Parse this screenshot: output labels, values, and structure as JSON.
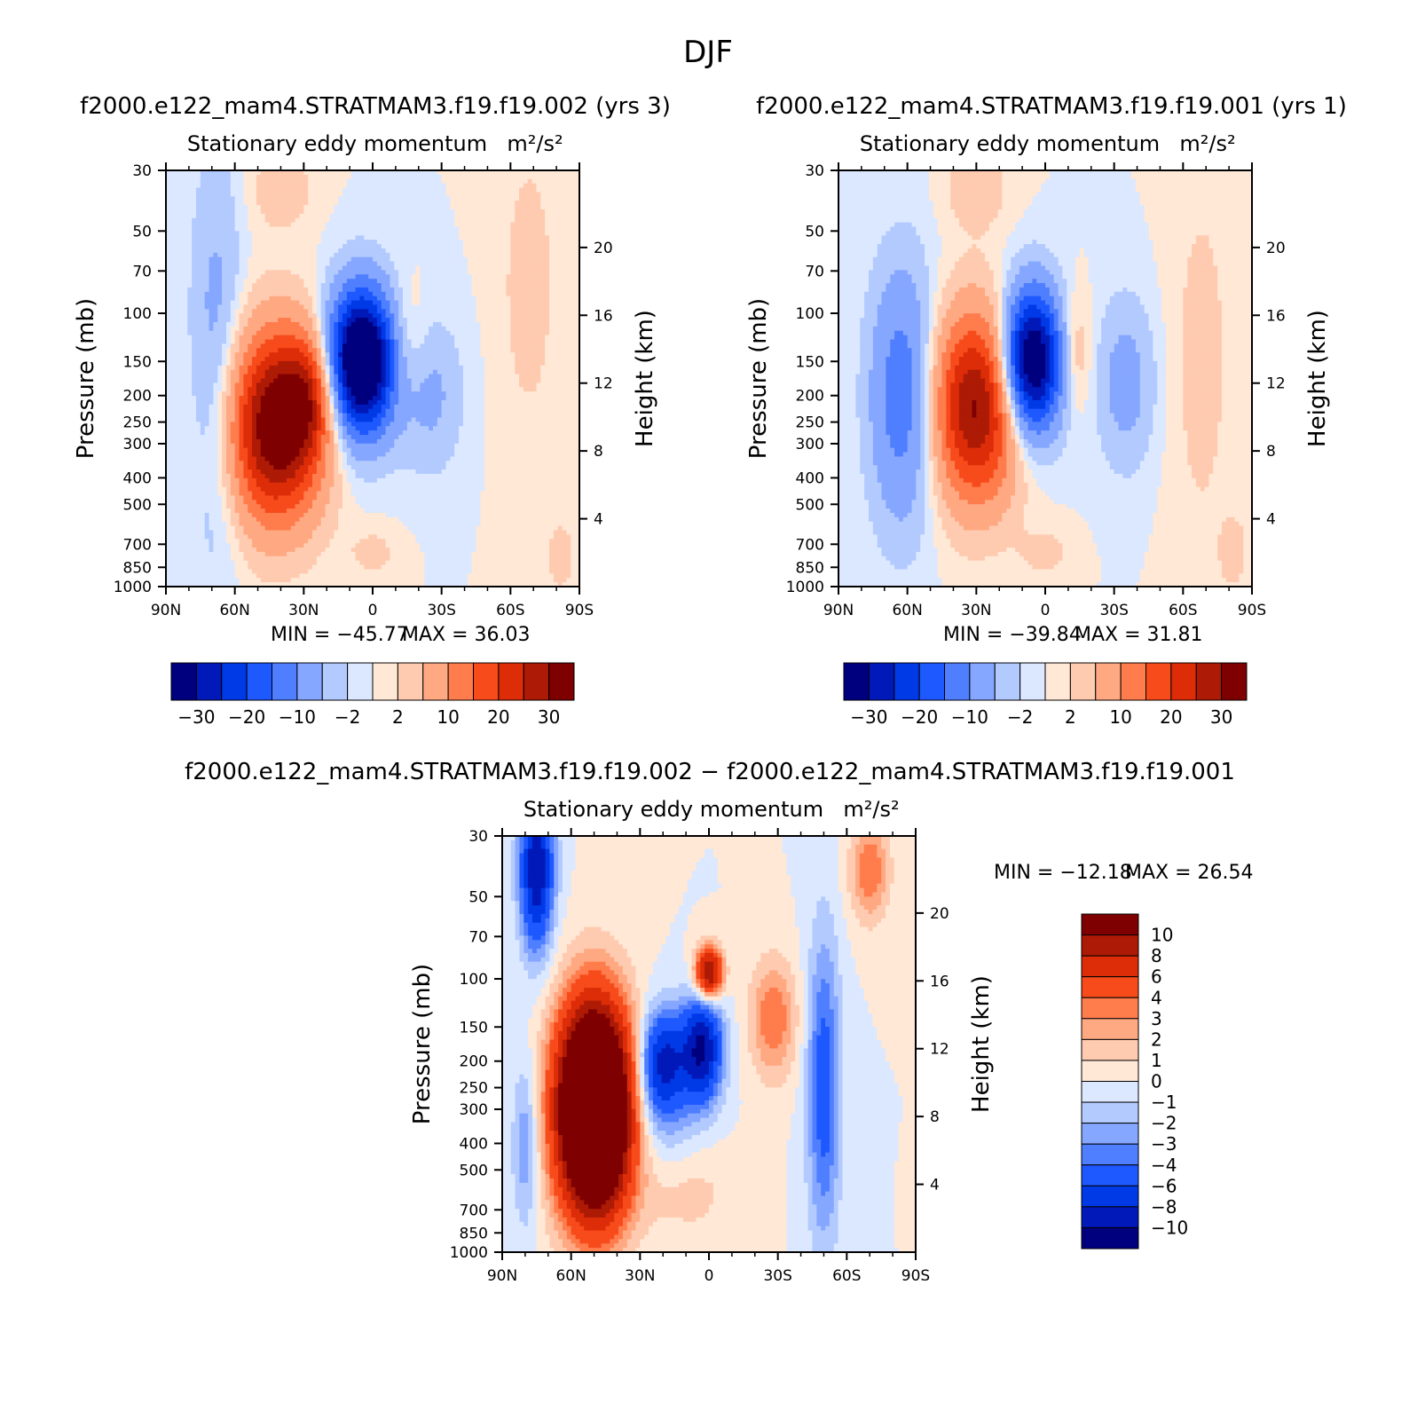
{
  "figure": {
    "season": "DJF",
    "case1_title": "f2000.e122_mam4.STRATMAM3.f19.f19.002  (yrs  3)",
    "case2_title": "f2000.e122_mam4.STRATMAM3.f19.f19.001  (yrs  1)",
    "diff_title": "f2000.e122_mam4.STRATMAM3.f19.f19.002  −  f2000.e122_mam4.STRATMAM3.f19.f19.001"
  },
  "chart_data": [
    {
      "type": "heatmap",
      "id": "case1",
      "title": "Stationary  eddy  momentum",
      "units": "m²/s²",
      "xlabel": "",
      "ylabel": "Pressure  (mb)",
      "y2label": "Height  (km)",
      "x_ticks": [
        "90N",
        "60N",
        "30N",
        "0",
        "30S",
        "60S",
        "90S"
      ],
      "y_ticks": [
        30,
        50,
        70,
        100,
        150,
        200,
        250,
        300,
        400,
        500,
        700,
        850,
        1000
      ],
      "y2_ticks": [
        4,
        8,
        12,
        16,
        20
      ],
      "xlim": [
        90,
        -90
      ],
      "ylim": [
        1000,
        30
      ],
      "y_scale": "log",
      "min_label": "MIN  =  −45.77",
      "max_label": "MAX  =    36.03",
      "min": -45.77,
      "max": 36.03,
      "levels": [
        -30,
        -25,
        -20,
        -15,
        -10,
        -5,
        -2,
        0,
        2,
        5,
        10,
        15,
        20,
        25,
        30
      ],
      "colorbar_labels": [
        "−30",
        "−20",
        "−10",
        "−2",
        "2",
        "10",
        "20",
        "30"
      ],
      "features": [
        {
          "lat": 42,
          "p": 260,
          "value": 36,
          "sig_lat": 14,
          "sig_z": 0.55
        },
        {
          "lat": 28,
          "p": 200,
          "value": 14,
          "sig_lat": 8,
          "sig_z": 0.35
        },
        {
          "lat": 5,
          "p": 150,
          "value": -45,
          "sig_lat": 10,
          "sig_z": 0.42
        },
        {
          "lat": 68,
          "p": 150,
          "value": -7,
          "sig_lat": 8,
          "sig_z": 1.2
        },
        {
          "lat": -25,
          "p": 200,
          "value": -6,
          "sig_lat": 10,
          "sig_z": 0.45
        },
        {
          "lat": -15,
          "p": 130,
          "value": 5,
          "sig_lat": 6,
          "sig_z": 0.35
        },
        {
          "lat": 40,
          "p": 35,
          "value": 4,
          "sig_lat": 10,
          "sig_z": 0.25
        },
        {
          "lat": -68,
          "p": 80,
          "value": 3,
          "sig_lat": 10,
          "sig_z": 1.0
        },
        {
          "lat": 0,
          "p": 750,
          "value": 3,
          "sig_lat": 8,
          "sig_z": 0.15
        },
        {
          "lat": -82,
          "p": 780,
          "value": 4,
          "sig_lat": 4,
          "sig_z": 0.2
        }
      ]
    },
    {
      "type": "heatmap",
      "id": "case2",
      "title": "Stationary  eddy  momentum",
      "units": "m²/s²",
      "xlabel": "",
      "ylabel": "Pressure  (mb)",
      "y2label": "Height  (km)",
      "x_ticks": [
        "90N",
        "60N",
        "30N",
        "0",
        "30S",
        "60S",
        "90S"
      ],
      "y_ticks": [
        30,
        50,
        70,
        100,
        150,
        200,
        250,
        300,
        400,
        500,
        700,
        850,
        1000
      ],
      "y2_ticks": [
        4,
        8,
        12,
        16,
        20
      ],
      "xlim": [
        90,
        -90
      ],
      "ylim": [
        1000,
        30
      ],
      "y_scale": "log",
      "min_label": "MIN  =  −39.84",
      "max_label": "MAX  =    31.81",
      "min": -39.84,
      "max": 31.81,
      "levels": [
        -30,
        -25,
        -20,
        -15,
        -10,
        -5,
        -2,
        0,
        2,
        5,
        10,
        15,
        20,
        25,
        30
      ],
      "colorbar_labels": [
        "−30",
        "−20",
        "−10",
        "−2",
        "2",
        "10",
        "20",
        "30"
      ],
      "features": [
        {
          "lat": 30,
          "p": 220,
          "value": 31,
          "sig_lat": 13,
          "sig_z": 0.55
        },
        {
          "lat": 6,
          "p": 150,
          "value": -40,
          "sig_lat": 9,
          "sig_z": 0.42
        },
        {
          "lat": 62,
          "p": 200,
          "value": -14,
          "sig_lat": 10,
          "sig_z": 0.75
        },
        {
          "lat": -35,
          "p": 180,
          "value": -7,
          "sig_lat": 9,
          "sig_z": 0.5
        },
        {
          "lat": -13,
          "p": 140,
          "value": 6,
          "sig_lat": 5,
          "sig_z": 0.35
        },
        {
          "lat": 30,
          "p": 35,
          "value": 4,
          "sig_lat": 10,
          "sig_z": 0.25
        },
        {
          "lat": -68,
          "p": 150,
          "value": 3,
          "sig_lat": 10,
          "sig_z": 1.2
        },
        {
          "lat": 0,
          "p": 750,
          "value": 3,
          "sig_lat": 8,
          "sig_z": 0.15
        },
        {
          "lat": -82,
          "p": 750,
          "value": 4,
          "sig_lat": 4,
          "sig_z": 0.2
        }
      ]
    },
    {
      "type": "heatmap",
      "id": "diff",
      "title": "Stationary  eddy  momentum",
      "units": "m²/s²",
      "xlabel": "",
      "ylabel": "Pressure  (mb)",
      "y2label": "Height  (km)",
      "x_ticks": [
        "90N",
        "60N",
        "30N",
        "0",
        "30S",
        "60S",
        "90S"
      ],
      "y_ticks": [
        30,
        50,
        70,
        100,
        150,
        200,
        250,
        300,
        400,
        500,
        700,
        850,
        1000
      ],
      "y2_ticks": [
        4,
        8,
        12,
        16,
        20
      ],
      "xlim": [
        90,
        -90
      ],
      "ylim": [
        1000,
        30
      ],
      "y_scale": "log",
      "min_label": "MIN  =  −12.18",
      "max_label": "MAX  =    26.54",
      "min": -12.18,
      "max": 26.54,
      "levels": [
        -10,
        -8,
        -6,
        -4,
        -3,
        -2,
        -1,
        0,
        1,
        2,
        3,
        4,
        6,
        8,
        10
      ],
      "colorbar_labels": [
        "10",
        "8",
        "6",
        "4",
        "3",
        "2",
        "1",
        "0",
        "−1",
        "−2",
        "−3",
        "−4",
        "−6",
        "−8",
        "−10"
      ],
      "features": [
        {
          "lat": 50,
          "p": 300,
          "value": 26,
          "sig_lat": 11,
          "sig_z": 0.6
        },
        {
          "lat": 20,
          "p": 200,
          "value": -8,
          "sig_lat": 7,
          "sig_z": 0.3
        },
        {
          "lat": 3,
          "p": 180,
          "value": -10,
          "sig_lat": 6,
          "sig_z": 0.3
        },
        {
          "lat": 0,
          "p": 95,
          "value": 11,
          "sig_lat": 4,
          "sig_z": 0.15
        },
        {
          "lat": 75,
          "p": 40,
          "value": -10,
          "sig_lat": 5,
          "sig_z": 0.45
        },
        {
          "lat": -28,
          "p": 140,
          "value": 4,
          "sig_lat": 7,
          "sig_z": 0.35
        },
        {
          "lat": -50,
          "p": 250,
          "value": -5,
          "sig_lat": 5,
          "sig_z": 0.9
        },
        {
          "lat": -70,
          "p": 40,
          "value": 4,
          "sig_lat": 6,
          "sig_z": 0.3
        },
        {
          "lat": 80,
          "p": 400,
          "value": -3,
          "sig_lat": 4,
          "sig_z": 0.5
        },
        {
          "lat": 10,
          "p": 600,
          "value": 1.5,
          "sig_lat": 15,
          "sig_z": 0.3
        },
        {
          "lat": 20,
          "p": 300,
          "value": -2,
          "sig_lat": 12,
          "sig_z": 0.4
        }
      ]
    }
  ],
  "colors": {
    "case_palette": [
      "#00007f",
      "#0019b8",
      "#0039e6",
      "#1e58ff",
      "#4f7fff",
      "#86a7ff",
      "#b3caff",
      "#dbe8ff",
      "#ffe8d6",
      "#ffcbb0",
      "#ffa983",
      "#ff7c4d",
      "#f74b1b",
      "#dc2c08",
      "#ad1a05",
      "#7f0000"
    ],
    "diff_palette": [
      "#00007f",
      "#0019b8",
      "#0039e6",
      "#1e58ff",
      "#4f7fff",
      "#86a7ff",
      "#b3caff",
      "#dbe8ff",
      "#ffe8d6",
      "#ffcbb0",
      "#ffa983",
      "#ff7c4d",
      "#f74b1b",
      "#dc2c08",
      "#ad1a05",
      "#7f0000"
    ]
  }
}
